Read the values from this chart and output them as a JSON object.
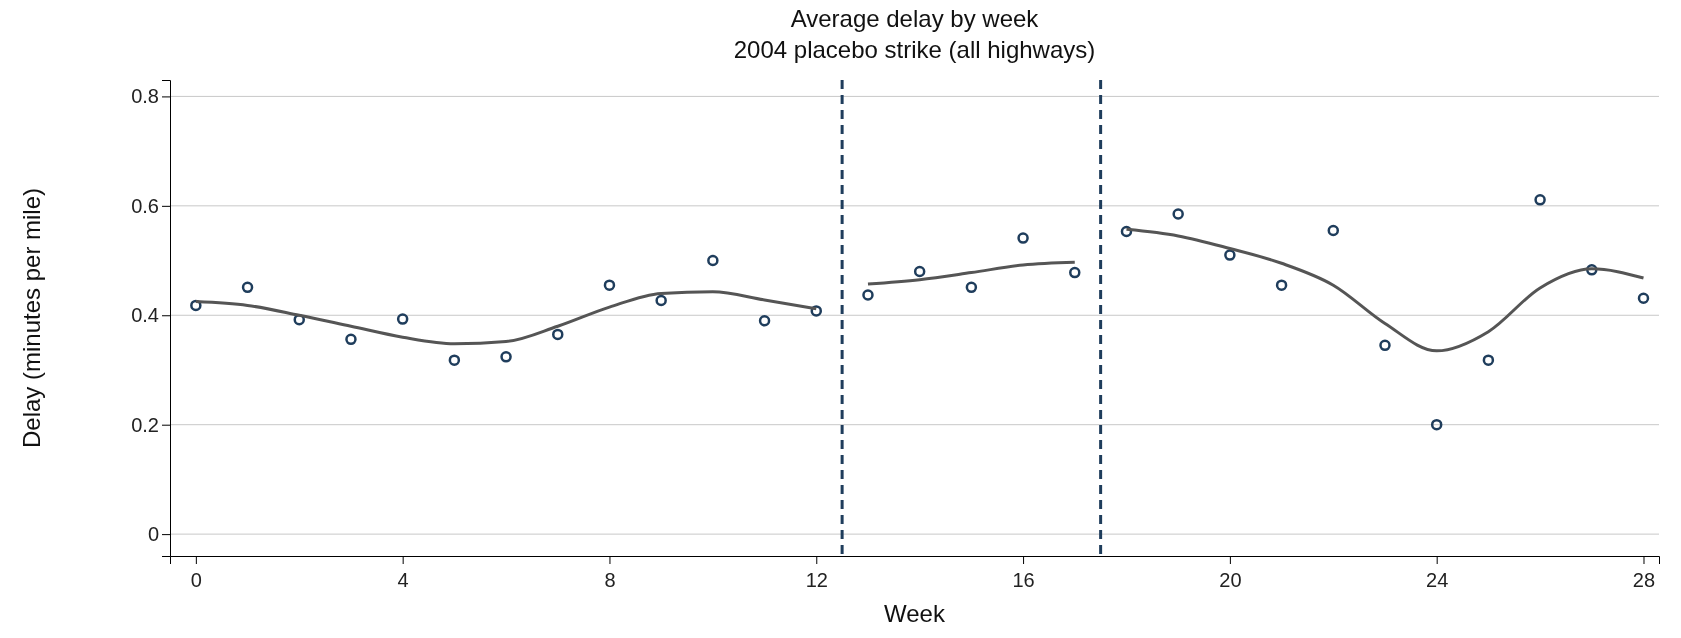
{
  "chart_data": {
    "type": "scatter",
    "title": "Average delay by week",
    "subtitle": "2004 placebo strike (all highways)",
    "xlabel": "Week",
    "ylabel": "Delay (minutes per mile)",
    "xlim": [
      -0.5,
      28.3
    ],
    "xticks": [
      0,
      4,
      8,
      12,
      16,
      20,
      24,
      28
    ],
    "ylim": [
      -0.04,
      0.83
    ],
    "yticks": [
      0,
      0.2,
      0.4,
      0.6,
      0.8
    ],
    "grid": "y",
    "marker": "circle",
    "x": [
      0,
      1,
      2,
      3,
      4,
      5,
      6,
      7,
      8,
      9,
      10,
      11,
      12,
      13,
      14,
      15,
      16,
      17,
      18,
      19,
      20,
      21,
      22,
      23,
      24,
      25,
      26,
      27,
      28
    ],
    "series": [
      {
        "color": "#1f3d5c",
        "values": [
          0.418,
          0.451,
          0.392,
          0.356,
          0.393,
          0.318,
          0.324,
          0.365,
          0.455,
          0.427,
          0.5,
          0.39,
          0.408,
          0.437,
          0.48,
          0.451,
          0.541,
          0.478,
          0.553,
          0.585,
          0.51,
          0.455,
          0.555,
          0.345,
          0.2,
          0.318,
          0.611,
          0.483,
          0.431
        ]
      },
      {
        "type": "line",
        "color": "#555555",
        "marker": "none",
        "x": [
          0,
          1,
          2,
          3,
          4,
          5,
          6,
          7,
          8,
          9,
          10,
          11,
          12
        ],
        "values": [
          0.425,
          0.418,
          0.4,
          0.38,
          0.36,
          0.348,
          0.352,
          0.38,
          0.415,
          0.44,
          0.443,
          0.428,
          0.412
        ]
      },
      {
        "type": "line",
        "color": "#555555",
        "marker": "none",
        "x": [
          13,
          14,
          15,
          16,
          17
        ],
        "values": [
          0.457,
          0.465,
          0.478,
          0.492,
          0.497
        ]
      },
      {
        "type": "line",
        "color": "#555555",
        "marker": "none",
        "x": [
          18,
          19,
          20,
          21,
          22,
          23,
          24,
          25,
          26,
          27,
          28
        ],
        "values": [
          0.557,
          0.545,
          0.522,
          0.495,
          0.455,
          0.385,
          0.335,
          0.37,
          0.45,
          0.485,
          0.468
        ]
      }
    ],
    "ref_lines": [
      {
        "axis": "x",
        "value": 12.5,
        "color": "#1f3d5c",
        "line_style": "dashed"
      },
      {
        "axis": "x",
        "value": 17.5,
        "color": "#1f3d5c",
        "line_style": "dashed"
      }
    ]
  }
}
